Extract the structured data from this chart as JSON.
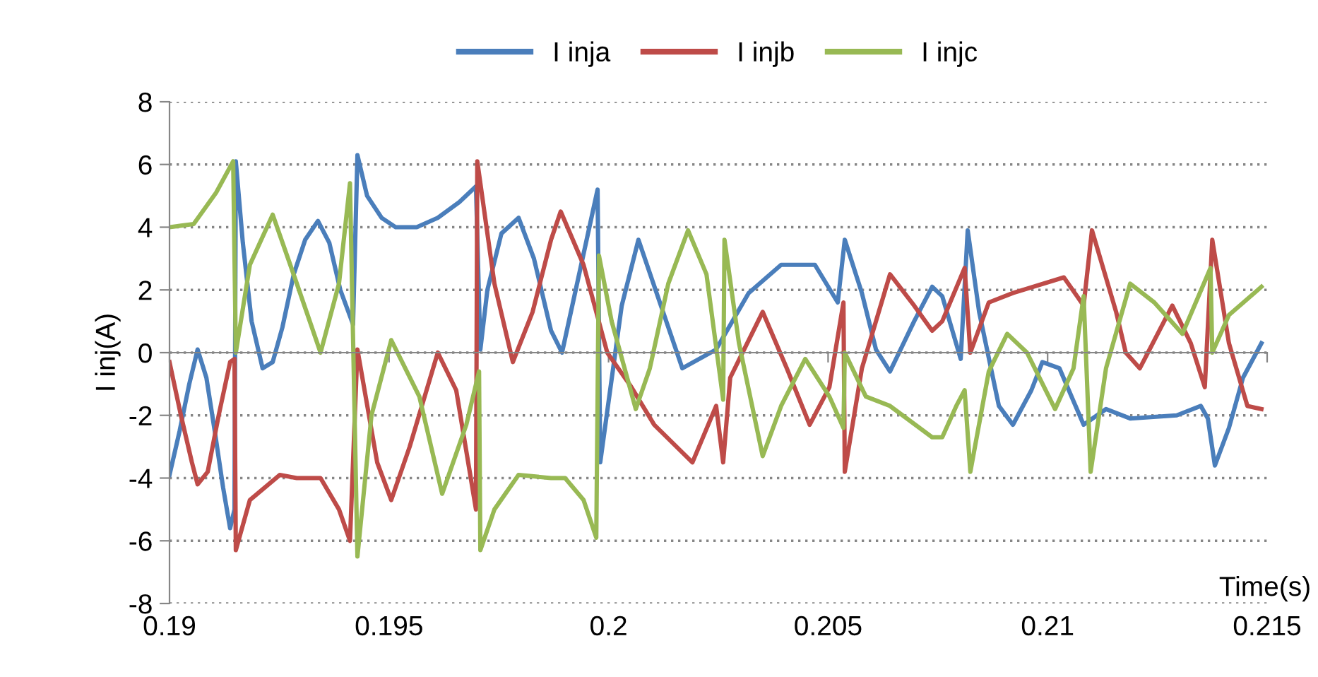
{
  "chart_data": {
    "type": "line",
    "xlabel": "Time(s)",
    "ylabel": "I inj(A)",
    "xlim": [
      0.19,
      0.215
    ],
    "ylim": [
      -8,
      8
    ],
    "xticks": [
      0.19,
      0.195,
      {
        "value": 0.2,
        "label": "0.2"
      },
      0.205,
      0.21,
      0.215
    ],
    "yticks": [
      -8,
      -6,
      -4,
      -2,
      0,
      2,
      4,
      6,
      8
    ],
    "grid": "y",
    "legend": "top",
    "marker": "none",
    "line_style": "solid",
    "series": [
      {
        "name": "I inja",
        "color": "#4a7ebb",
        "x": [
          0.19,
          0.19023,
          0.19045,
          0.19064,
          0.19084,
          0.19103,
          0.19122,
          0.19138,
          0.19148,
          0.19151,
          0.19167,
          0.19187,
          0.19212,
          0.19235,
          0.19257,
          0.19283,
          0.19309,
          0.19338,
          0.19364,
          0.19389,
          0.19418,
          0.19428,
          0.1945,
          0.19483,
          0.19515,
          0.19563,
          0.19611,
          0.1966,
          0.19698,
          0.19708,
          0.19724,
          0.19756,
          0.19795,
          0.1983,
          0.19869,
          0.19894,
          0.19975,
          0.19981,
          0.2003,
          0.20068,
          0.20168,
          0.20245,
          0.20319,
          0.20393,
          0.2047,
          0.20522,
          0.20538,
          0.20577,
          0.20609,
          0.20641,
          0.20696,
          0.20737,
          0.2076,
          0.20802,
          0.20818,
          0.20844,
          0.20889,
          0.20921,
          0.20963,
          0.20988,
          0.21027,
          0.21082,
          0.21133,
          0.21188,
          0.21294,
          0.21349,
          0.21365,
          0.21381,
          0.21413,
          0.21445,
          0.21487
        ],
        "values": [
          -3.9,
          -2.5,
          -1.0,
          0.1,
          -0.8,
          -2.5,
          -4.3,
          -5.6,
          -5.0,
          6.1,
          3.5,
          1.0,
          -0.5,
          -0.3,
          0.8,
          2.5,
          3.6,
          4.2,
          3.5,
          2.0,
          0.9,
          6.3,
          5.0,
          4.3,
          4.0,
          4.0,
          4.3,
          4.8,
          5.3,
          0.1,
          2.0,
          3.8,
          4.3,
          3.0,
          0.7,
          0.0,
          5.2,
          -3.5,
          1.5,
          3.6,
          -0.5,
          0.1,
          1.9,
          2.8,
          2.8,
          1.6,
          3.6,
          1.9,
          0.1,
          -0.6,
          1.0,
          2.1,
          1.8,
          -0.2,
          3.9,
          1.3,
          -1.7,
          -2.3,
          -1.2,
          -0.3,
          -0.5,
          -2.3,
          -1.8,
          -2.1,
          -2.0,
          -1.7,
          -2.1,
          -3.6,
          -2.4,
          -0.8,
          0.3
        ]
      },
      {
        "name": "I injb",
        "color": "#be4b48",
        "x": [
          0.19,
          0.19026,
          0.19051,
          0.19064,
          0.19087,
          0.19112,
          0.19138,
          0.19148,
          0.19151,
          0.19183,
          0.19251,
          0.1929,
          0.19344,
          0.19386,
          0.19411,
          0.19428,
          0.19473,
          0.19505,
          0.19547,
          0.19611,
          0.19653,
          0.19698,
          0.19701,
          0.1974,
          0.19782,
          0.19827,
          0.19869,
          0.19891,
          0.19943,
          0.19997,
          0.20052,
          0.20104,
          0.20191,
          0.20245,
          0.20261,
          0.20277,
          0.20351,
          0.20406,
          0.20458,
          0.20503,
          0.20535,
          0.20538,
          0.20577,
          0.20641,
          0.20696,
          0.20737,
          0.2076,
          0.20811,
          0.20824,
          0.20866,
          0.20921,
          0.21037,
          0.21082,
          0.21101,
          0.21156,
          0.21178,
          0.2121,
          0.21284,
          0.21326,
          0.21358,
          0.21375,
          0.21413,
          0.21455,
          0.21487
        ],
        "values": [
          -0.3,
          -2.0,
          -3.5,
          -4.2,
          -3.8,
          -2.0,
          -0.3,
          -0.2,
          -6.3,
          -4.7,
          -3.9,
          -4.0,
          -4.0,
          -5.0,
          -6.0,
          0.1,
          -3.5,
          -4.7,
          -3.0,
          0.0,
          -1.2,
          -5.0,
          6.1,
          2.2,
          -0.3,
          1.3,
          3.6,
          4.5,
          2.8,
          0.0,
          -1.1,
          -2.3,
          -3.5,
          -1.7,
          -3.5,
          -0.8,
          1.3,
          -0.5,
          -2.3,
          -1.1,
          1.6,
          -3.8,
          -0.5,
          2.5,
          1.5,
          0.7,
          1.0,
          2.7,
          0.0,
          1.6,
          1.9,
          2.4,
          1.5,
          3.9,
          1.3,
          0.0,
          -0.5,
          1.5,
          0.3,
          -1.1,
          3.6,
          0.3,
          -1.7,
          -1.8
        ]
      },
      {
        "name": "I injc",
        "color": "#98b954",
        "x": [
          0.19,
          0.19055,
          0.19106,
          0.19145,
          0.19151,
          0.19183,
          0.19235,
          0.1929,
          0.19344,
          0.19386,
          0.19411,
          0.19428,
          0.1946,
          0.19505,
          0.19569,
          0.19621,
          0.19676,
          0.19705,
          0.19708,
          0.1974,
          0.19795,
          0.19869,
          0.19901,
          0.19943,
          0.19972,
          0.19978,
          0.20007,
          0.20062,
          0.20094,
          0.20136,
          0.20181,
          0.20223,
          0.20261,
          0.20264,
          0.20297,
          0.20351,
          0.20393,
          0.20448,
          0.20503,
          0.20535,
          0.20538,
          0.20586,
          0.20641,
          0.20737,
          0.2076,
          0.20792,
          0.20811,
          0.20824,
          0.20866,
          0.20908,
          0.20953,
          0.21017,
          0.21059,
          0.21082,
          0.21098,
          0.21133,
          0.21188,
          0.21243,
          0.21307,
          0.21371,
          0.21375,
          0.21413,
          0.21487
        ],
        "values": [
          4.0,
          4.1,
          5.1,
          6.1,
          0.0,
          2.8,
          4.4,
          2.2,
          0.0,
          2.2,
          5.4,
          -6.5,
          -2.0,
          0.4,
          -1.4,
          -4.5,
          -2.3,
          -0.6,
          -6.3,
          -5.0,
          -3.9,
          -4.0,
          -4.0,
          -4.7,
          -5.9,
          3.1,
          1.0,
          -1.8,
          -0.5,
          2.2,
          3.9,
          2.5,
          -1.5,
          3.6,
          0.3,
          -3.3,
          -1.7,
          -0.2,
          -1.4,
          -2.4,
          0.0,
          -1.4,
          -1.7,
          -2.7,
          -2.7,
          -1.7,
          -1.2,
          -3.8,
          -0.6,
          0.6,
          0.0,
          -1.8,
          -0.5,
          1.8,
          -3.8,
          -0.5,
          2.2,
          1.6,
          0.6,
          2.7,
          0.0,
          1.2,
          2.1
        ]
      }
    ]
  }
}
